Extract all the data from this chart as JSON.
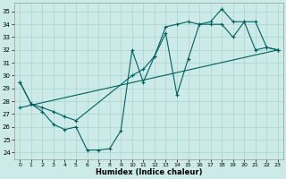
{
  "xlabel": "Humidex (Indice chaleur)",
  "bg_color": "#cceae7",
  "line_color": "#006060",
  "grid_color": "#aad4d0",
  "xlim": [
    -0.5,
    23.5
  ],
  "ylim": [
    23.5,
    35.7
  ],
  "yticks": [
    24,
    25,
    26,
    27,
    28,
    29,
    30,
    31,
    32,
    33,
    34,
    35
  ],
  "xticks": [
    0,
    1,
    2,
    3,
    4,
    5,
    6,
    7,
    8,
    9,
    10,
    11,
    12,
    13,
    14,
    15,
    16,
    17,
    18,
    19,
    20,
    21,
    22,
    23
  ],
  "line1_x": [
    0,
    1,
    2,
    3,
    4,
    5,
    6,
    7,
    8,
    9,
    10,
    11,
    12,
    13,
    14,
    15,
    16,
    17,
    18,
    19,
    20,
    21,
    22,
    23
  ],
  "line1_y": [
    29.5,
    27.8,
    27.2,
    26.2,
    25.8,
    26.0,
    24.2,
    24.2,
    24.3,
    25.7,
    32.0,
    29.5,
    31.5,
    33.3,
    28.5,
    31.3,
    34.0,
    34.2,
    35.2,
    34.2,
    34.2,
    34.2,
    32.2,
    32.0
  ],
  "line2_x": [
    0,
    1,
    2,
    3,
    4,
    5,
    10,
    11,
    12,
    13,
    14,
    15,
    16,
    17,
    18,
    19,
    20,
    21,
    22,
    23
  ],
  "line2_y": [
    29.5,
    27.8,
    27.5,
    27.2,
    26.8,
    26.5,
    30.0,
    30.5,
    31.5,
    33.8,
    34.0,
    34.2,
    34.0,
    34.0,
    34.0,
    33.0,
    34.2,
    32.0,
    32.2,
    32.0
  ],
  "line3_x": [
    0,
    23
  ],
  "line3_y": [
    27.5,
    32.0
  ]
}
